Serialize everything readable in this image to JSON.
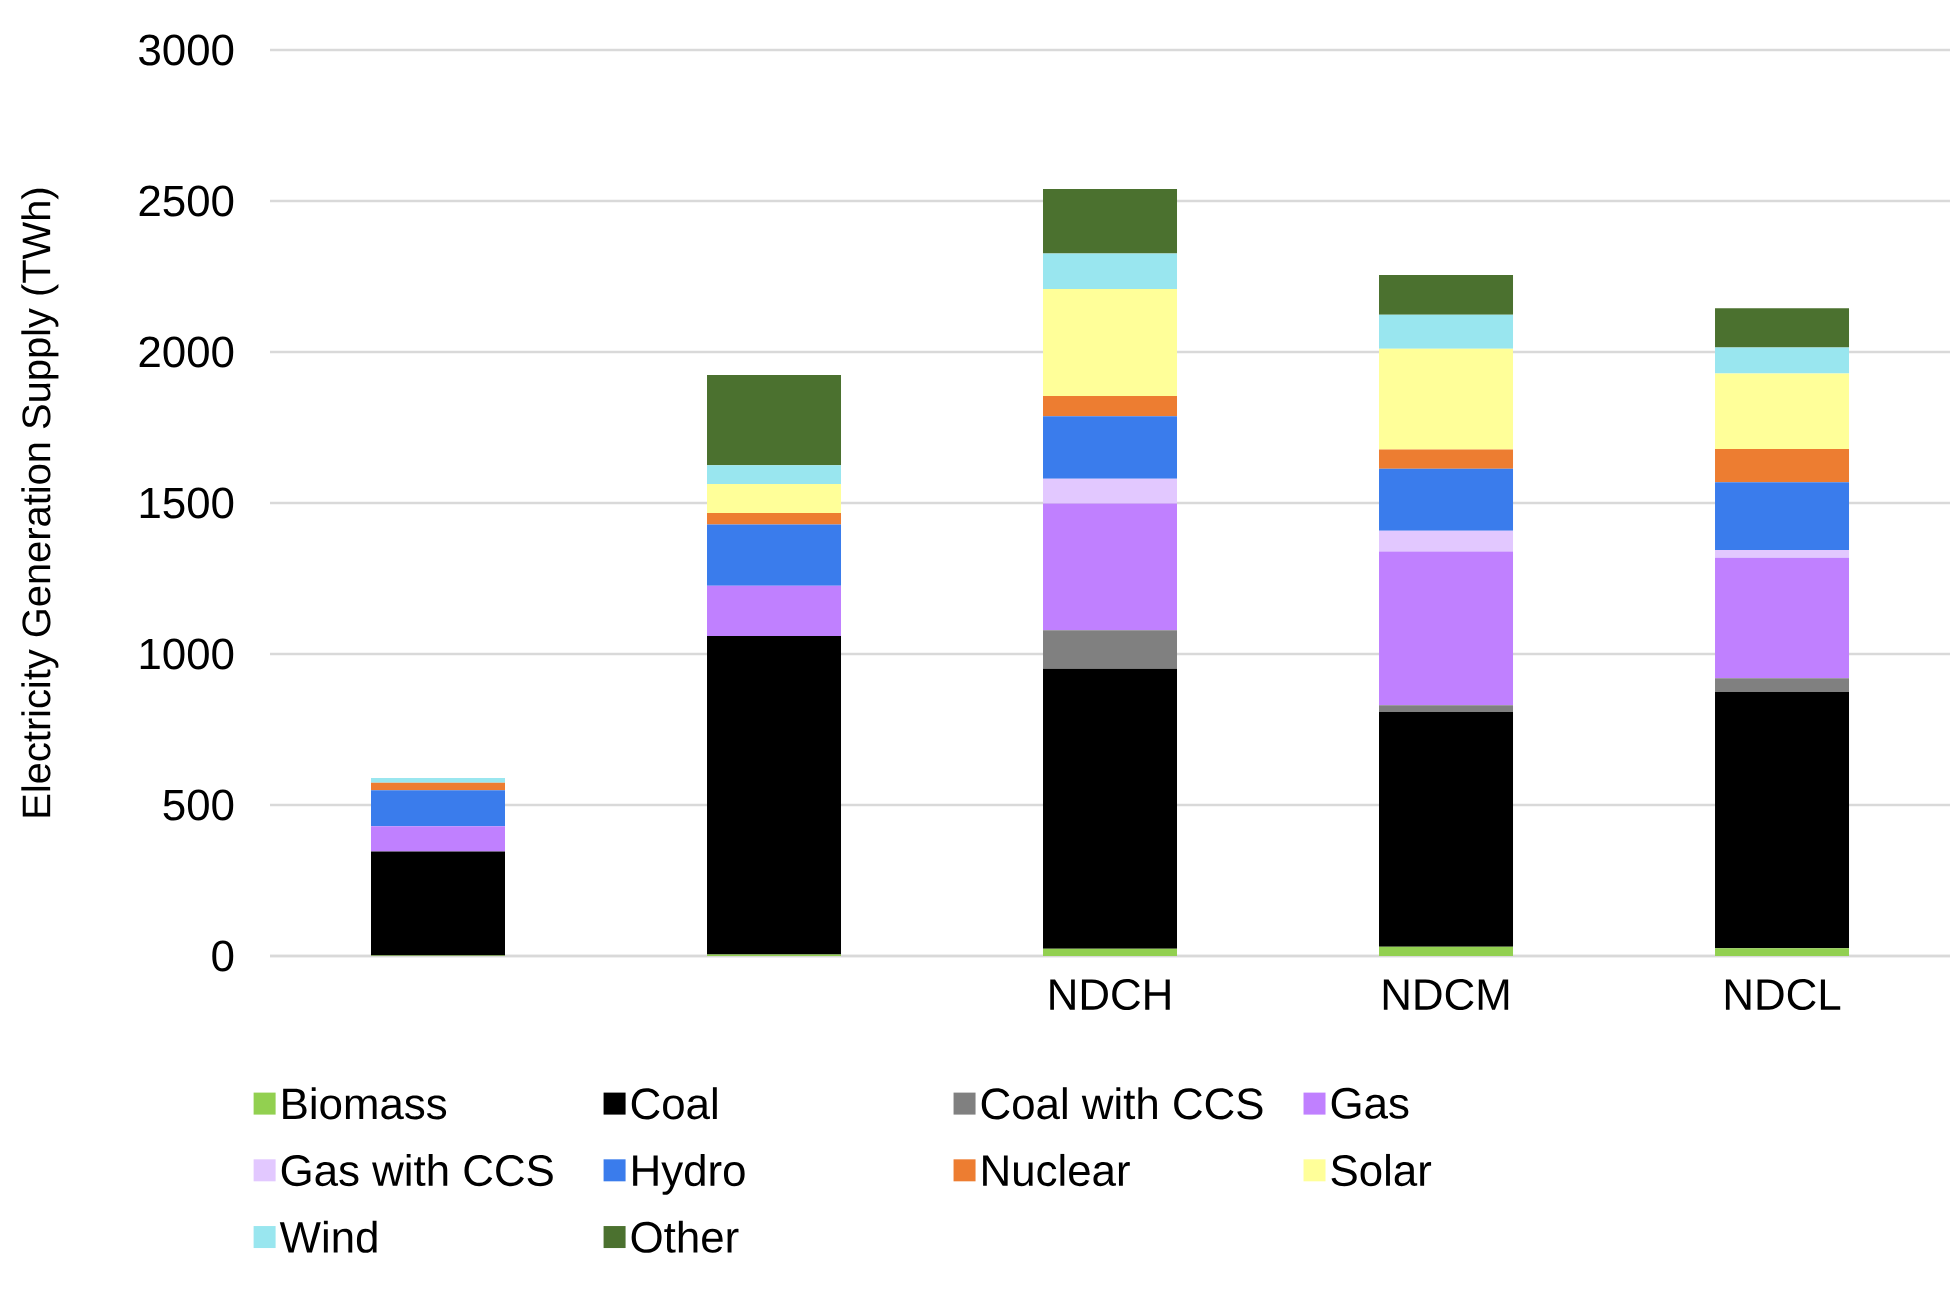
{
  "chart_data": {
    "type": "bar",
    "stacked": true,
    "ylabel": "Electricity Generation  Supply (TWh)",
    "categories": [
      null,
      null,
      "NDCH",
      "NDCM",
      "NDCL"
    ],
    "ylim": [
      0,
      3000
    ],
    "yticks": [
      0,
      500,
      1000,
      1500,
      2000,
      2500,
      3000
    ],
    "grid": "y",
    "legend": "bottom",
    "series": [
      {
        "name": "Biomass",
        "color": "#92d050",
        "values": [
          2,
          5,
          24,
          31,
          26
        ]
      },
      {
        "name": "Coal",
        "color": "#000000",
        "values": [
          344,
          1055,
          927,
          777,
          848
        ]
      },
      {
        "name": "Coal with CCS",
        "color": "#808080",
        "values": [
          0,
          0,
          128,
          22,
          46
        ]
      },
      {
        "name": "Gas",
        "color": "#c080ff",
        "values": [
          84,
          166,
          419,
          509,
          399
        ]
      },
      {
        "name": "Gas with CCS",
        "color": "#e2c8ff",
        "values": [
          0,
          0,
          82,
          69,
          25
        ]
      },
      {
        "name": "Hydro",
        "color": "#3a7cec",
        "values": [
          119,
          203,
          207,
          205,
          225
        ]
      },
      {
        "name": "Nuclear",
        "color": "#ed7d31",
        "values": [
          25,
          38,
          67,
          64,
          110
        ]
      },
      {
        "name": "Solar",
        "color": "#ffff99",
        "values": [
          0,
          96,
          355,
          334,
          250
        ]
      },
      {
        "name": "Wind",
        "color": "#99e6ef",
        "values": [
          15,
          62,
          117,
          112,
          86
        ]
      },
      {
        "name": "Other",
        "color": "#4b712f",
        "values": [
          0,
          299,
          214,
          132,
          130
        ]
      }
    ]
  }
}
